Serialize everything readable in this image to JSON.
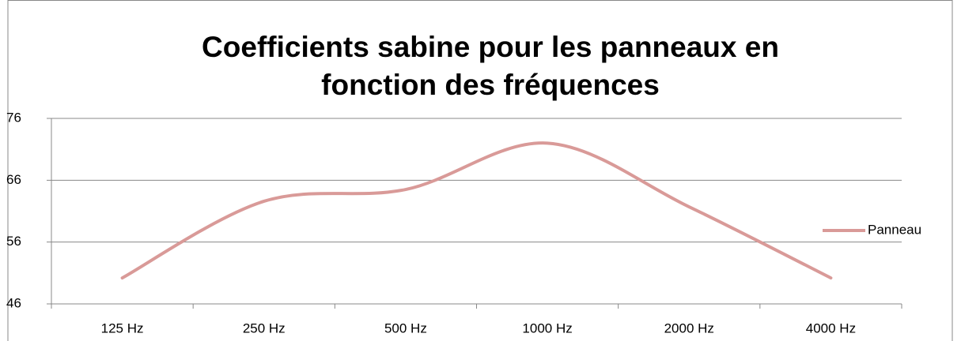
{
  "chart_data": {
    "type": "line",
    "title": "Coefficients sabine pour les panneaux en fonction des fréquences",
    "categories": [
      "125 Hz",
      "250 Hz",
      "500 Hz",
      "1000 Hz",
      "2000 Hz",
      "4000 Hz"
    ],
    "series": [
      {
        "name": "Panneau",
        "color": "#d99a98",
        "values": [
          50.2,
          62.6,
          64.5,
          72,
          61.7,
          50.2
        ]
      }
    ],
    "ylim": [
      46,
      76
    ],
    "yticks": [
      46,
      56,
      66,
      76
    ],
    "grid": true,
    "smooth": true,
    "legend": "right"
  }
}
